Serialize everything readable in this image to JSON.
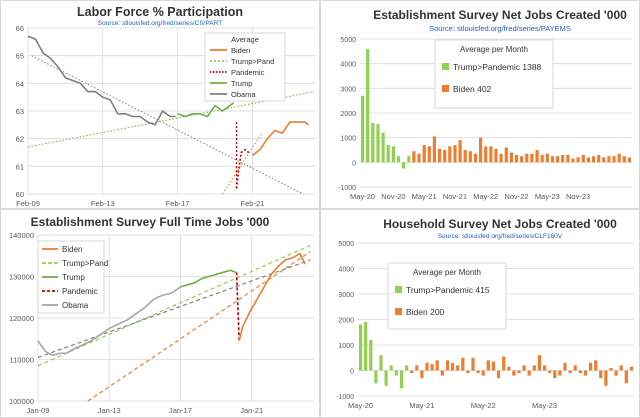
{
  "chart_data": [
    {
      "type": "line",
      "title": "Labor Force % Participation",
      "subtitle": "Source: stlouisfed.org/fred/series/CIVPART",
      "legend": {
        "title": "Average",
        "position": "top-right",
        "entries": [
          "Biden",
          "Trump>Pand",
          "Pandemic",
          "Trump",
          "Obama"
        ]
      },
      "x_ticks": [
        "Feb-09",
        "Feb-13",
        "Feb-17",
        "Feb-21"
      ],
      "y_ticks": [
        "60",
        "61",
        "62",
        "63",
        "64",
        "65",
        "66"
      ],
      "ylim": [
        60,
        66
      ],
      "grid": true,
      "series": [
        {
          "name": "Obama",
          "color": "#7f7f7f",
          "x": [
            2009.1,
            2009.5,
            2009.9,
            2010.3,
            2010.7,
            2011.1,
            2011.5,
            2011.9,
            2012.3,
            2012.7,
            2013.1,
            2013.5,
            2013.9,
            2014.3,
            2014.7,
            2015.1,
            2015.5,
            2015.9,
            2016.3,
            2016.7,
            2017.0
          ],
          "y": [
            65.7,
            65.6,
            65.1,
            64.9,
            64.6,
            64.2,
            64.1,
            64.0,
            63.7,
            63.7,
            63.5,
            63.4,
            62.9,
            62.9,
            62.8,
            62.8,
            62.6,
            62.5,
            63.0,
            62.8,
            62.8
          ]
        },
        {
          "name": "Trump",
          "color": "#70ad47",
          "x": [
            2017.1,
            2017.5,
            2017.9,
            2018.3,
            2018.7,
            2019.1,
            2019.5,
            2019.9,
            2020.1
          ],
          "y": [
            62.9,
            62.8,
            62.9,
            62.9,
            62.8,
            63.2,
            63.0,
            63.2,
            63.3
          ]
        },
        {
          "name": "Biden",
          "color": "#ed7d31",
          "x": [
            2021.1,
            2021.5,
            2021.9,
            2022.3,
            2022.7,
            2023.1,
            2023.5,
            2023.9,
            2024.1
          ],
          "y": [
            61.4,
            61.6,
            62.0,
            62.3,
            62.2,
            62.6,
            62.6,
            62.6,
            62.5
          ]
        },
        {
          "name": "Pandemic",
          "color": "#c00000",
          "x": [
            2020.25,
            2020.35,
            2020.5,
            2020.7,
            2020.9
          ],
          "y": [
            60.2,
            60.8,
            61.5,
            61.6,
            61.5
          ]
        }
      ]
    },
    {
      "type": "bar",
      "title": "Establishment Survey Net Jobs Created '000",
      "subtitle": "Source: stlouisfed.org/fred/series/PAYEMS",
      "legend": {
        "title": "Average per Month",
        "position": "top-center",
        "entries": [
          "Trump>Pandemic 1388",
          "Biden 402"
        ]
      },
      "x_ticks": [
        "May-20",
        "Nov-20",
        "May-21",
        "Nov-21",
        "May-22",
        "Nov-22",
        "May-23",
        "Nov-23"
      ],
      "y_ticks": [
        "-1000",
        "0",
        "1000",
        "2000",
        "3000",
        "4000",
        "5000"
      ],
      "ylim": [
        -1000,
        5000
      ],
      "grid": true,
      "series": [
        {
          "name": "Trump>Pandemic 1388",
          "color": "#92d050",
          "values": [
            2700,
            4600,
            1600,
            1550,
            1200,
            700,
            650,
            250,
            -250,
            250
          ]
        },
        {
          "name": "Biden 402",
          "color": "#ed7d31",
          "values": [
            450,
            350,
            700,
            650,
            1050,
            550,
            500,
            650,
            700,
            900,
            500,
            450,
            350,
            1000,
            650,
            650,
            550,
            350,
            600,
            400,
            300,
            250,
            350,
            350,
            500,
            300,
            350,
            250,
            250,
            300,
            300,
            150,
            200,
            300,
            200,
            250,
            300,
            200,
            250,
            250,
            350,
            250,
            200
          ]
        }
      ]
    },
    {
      "type": "line",
      "title": "Establishment Survey Full Time Jobs '000",
      "legend": {
        "position": "top-left",
        "entries": [
          "Biden",
          "Trump>Pand",
          "Trump",
          "Pandemic",
          "Obama"
        ]
      },
      "x_ticks": [
        "Jan-09",
        "Jan-13",
        "Jan-17",
        "Jan-21"
      ],
      "y_ticks": [
        "100000",
        "110000",
        "120000",
        "130000",
        "140000"
      ],
      "ylim": [
        100000,
        140000
      ],
      "grid": true,
      "series": [
        {
          "name": "Obama",
          "color": "#a5a5a5",
          "x": [
            2009.0,
            2009.4,
            2009.8,
            2010.2,
            2010.6,
            2011.0,
            2011.5,
            2012.0,
            2012.5,
            2013.0,
            2013.5,
            2014.0,
            2014.5,
            2015.0,
            2015.5,
            2016.0,
            2016.5,
            2017.0
          ],
          "y": [
            114500,
            112000,
            111000,
            111500,
            111500,
            112500,
            113500,
            114500,
            116000,
            117500,
            118500,
            119500,
            121000,
            122500,
            124500,
            125500,
            126000,
            127500
          ]
        },
        {
          "name": "Trump",
          "color": "#70ad47",
          "x": [
            2017.0,
            2017.4,
            2017.8,
            2018.2,
            2018.6,
            2019.0,
            2019.4,
            2019.8,
            2020.1
          ],
          "y": [
            127500,
            128000,
            128500,
            129500,
            130000,
            130500,
            131000,
            131500,
            131000
          ]
        },
        {
          "name": "Pandemic",
          "color": "#c00000",
          "x": [
            2020.15,
            2020.3
          ],
          "y": [
            131000,
            114500
          ]
        },
        {
          "name": "Biden",
          "color": "#ed7d31",
          "x": [
            2020.3,
            2020.5,
            2020.9,
            2021.3,
            2021.7,
            2022.1,
            2022.5,
            2022.9,
            2023.3,
            2023.7,
            2024.0
          ],
          "y": [
            114500,
            118000,
            121500,
            124500,
            127500,
            130500,
            132500,
            134000,
            134500,
            135500,
            133000
          ]
        }
      ]
    },
    {
      "type": "bar",
      "title": "Household Survey Net Jobs Created '000",
      "subtitle": "Source: stlouisfed.org/fred/series/CLF160V",
      "legend": {
        "title": "Average per Month",
        "position": "top-center",
        "entries": [
          "Trump>Pandemic 415",
          "Biden 200"
        ]
      },
      "x_ticks": [
        "May-20",
        "May-21",
        "May-22",
        "May-23"
      ],
      "y_ticks": [
        "-1000",
        "0",
        "1000",
        "2000",
        "3000",
        "4000",
        "5000"
      ],
      "ylim": [
        -1000,
        5000
      ],
      "grid": true,
      "series": [
        {
          "name": "Trump>Pandemic 415",
          "color": "#92d050",
          "values": [
            1800,
            1900,
            1200,
            -500,
            600,
            -600,
            200,
            -200,
            -700,
            200
          ]
        },
        {
          "name": "Biden 200",
          "color": "#ed7d31",
          "values": [
            -100,
            200,
            -300,
            300,
            250,
            400,
            -200,
            400,
            300,
            200,
            500,
            -100,
            500,
            -100,
            -200,
            400,
            350,
            -300,
            550,
            150,
            -200,
            -100,
            200,
            -200,
            200,
            600,
            200,
            -100,
            -300,
            -200,
            300,
            -100,
            200,
            -100,
            -200,
            300,
            400,
            -300,
            -600,
            100,
            -200,
            200,
            -500,
            150
          ]
        }
      ]
    }
  ]
}
